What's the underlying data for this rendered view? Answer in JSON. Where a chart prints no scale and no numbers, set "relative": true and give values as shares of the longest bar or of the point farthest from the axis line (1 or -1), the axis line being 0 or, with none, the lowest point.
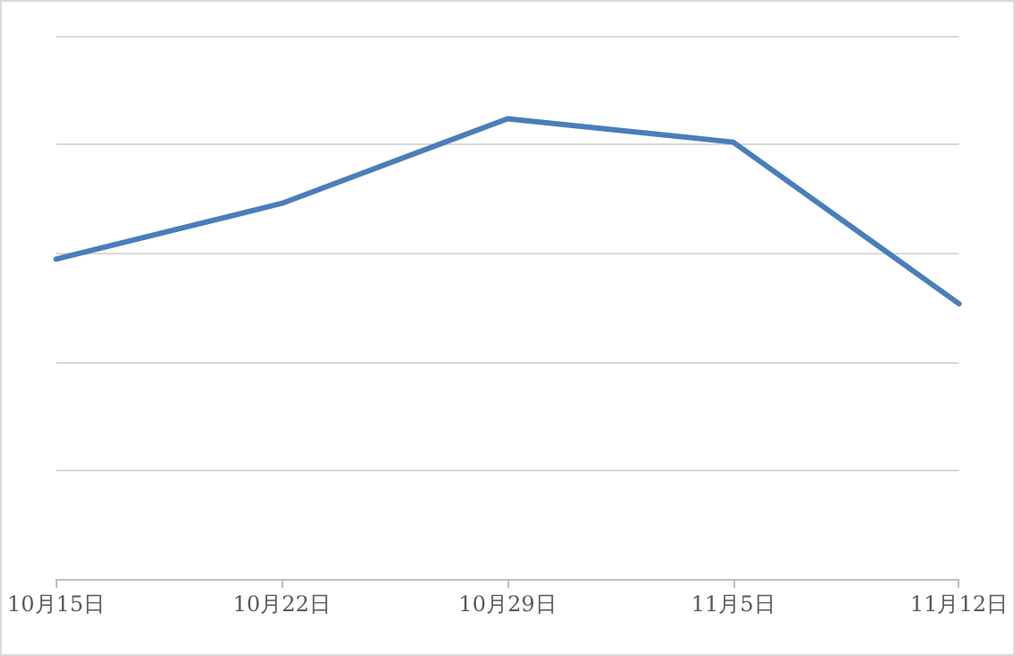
{
  "chart_data": {
    "type": "line",
    "relative": true,
    "categories": [
      "10月15日",
      "10月22日",
      "10月29日",
      "11月5日",
      "11月12日"
    ],
    "series": [
      {
        "color": "#4a7ebb",
        "values": [
          0.695,
          0.816,
          1,
          0.949,
          0.598
        ]
      }
    ],
    "grid": "y",
    "marker": "none",
    "line_style": "solid"
  }
}
